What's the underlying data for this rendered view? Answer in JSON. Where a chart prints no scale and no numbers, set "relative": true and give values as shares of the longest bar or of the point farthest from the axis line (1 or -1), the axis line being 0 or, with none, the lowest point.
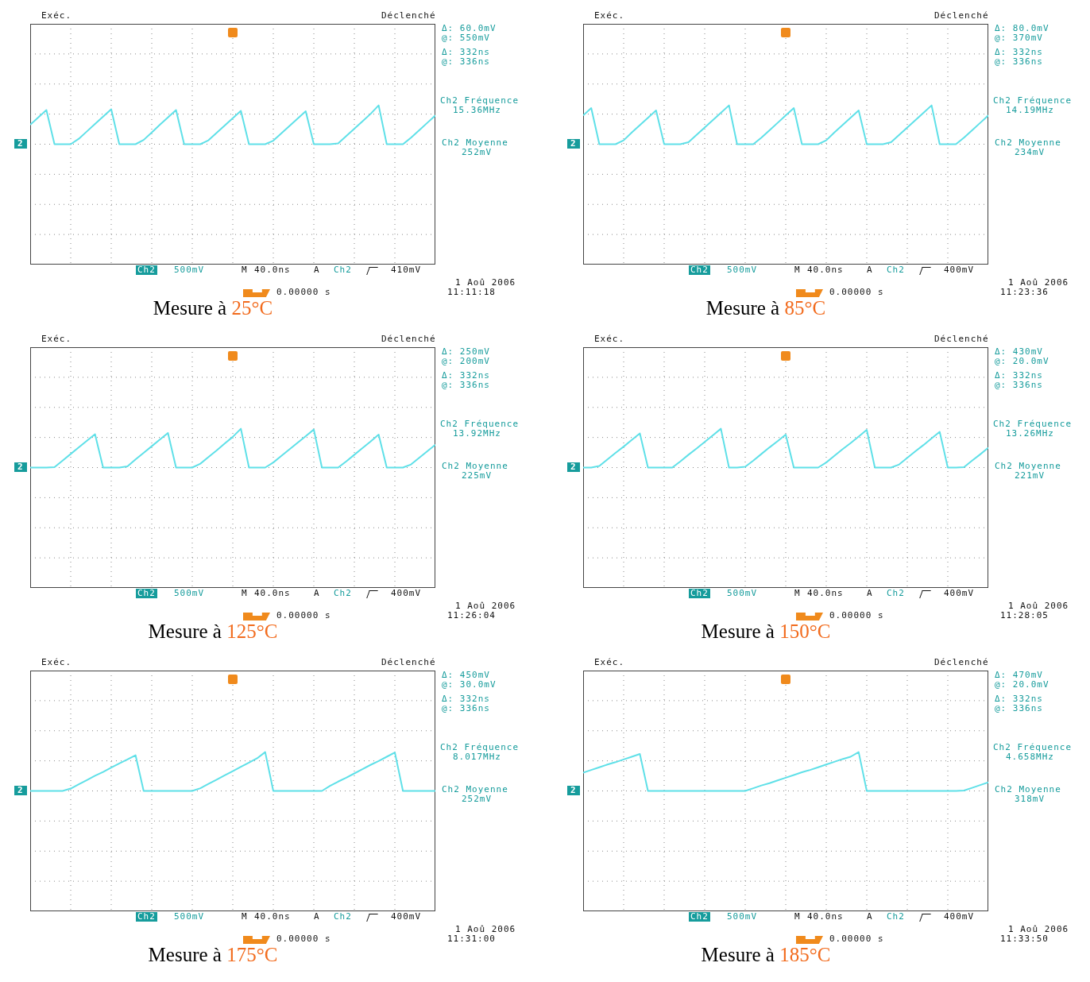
{
  "chart_data": [
    {
      "type": "line",
      "title": "Mesure à 25°C",
      "relative": true,
      "grid": true,
      "tick_labels": false,
      "categories": [
        null,
        null,
        null,
        null,
        null,
        null,
        null,
        null,
        null,
        null,
        null,
        null,
        null,
        null,
        null,
        null,
        null,
        null,
        null,
        null,
        null,
        null,
        null,
        null,
        null,
        null,
        null,
        null,
        null,
        null,
        null,
        null,
        null,
        null,
        null,
        null,
        null,
        null,
        null,
        null,
        null,
        null,
        null,
        null,
        null,
        null,
        null,
        null,
        null,
        null,
        null
      ],
      "series": [
        {
          "color": "#5fe0e8",
          "values": [
            0.5,
            0.69,
            0.88,
            0,
            0,
            0,
            0.14,
            0.33,
            0.52,
            0.71,
            0.9,
            0,
            0,
            0,
            0.11,
            0.3,
            0.5,
            0.69,
            0.88,
            0,
            0,
            0,
            0.1,
            0.29,
            0.48,
            0.67,
            0.86,
            0,
            0,
            0,
            0.09,
            0.28,
            0.47,
            0.66,
            0.85,
            0,
            0,
            0,
            0.02,
            0.21,
            0.4,
            0.59,
            0.78,
            1.0,
            0,
            0,
            0,
            0.17,
            0.36,
            0.55,
            0.74
          ]
        }
      ],
      "annotations": [
        "Exéc.",
        "Déclenché",
        "Δ: 60.0mV",
        "@: 550mV",
        "Δ: 332ns",
        "@: 336ns",
        "Ch2 Fréquence",
        "15.36MHz",
        "Ch2 Moyenne",
        "252mV",
        "Ch2",
        "500mV",
        "M",
        "40.0ns",
        "A",
        "Ch2",
        "410mV",
        "1 Aoû 2006",
        "11:11:18",
        "0.00000 s",
        "2"
      ]
    },
    {
      "type": "line",
      "title": "Mesure à 85°C",
      "relative": true,
      "grid": true,
      "tick_labels": false,
      "categories": [
        null,
        null,
        null,
        null,
        null,
        null,
        null,
        null,
        null,
        null,
        null,
        null,
        null,
        null,
        null,
        null,
        null,
        null,
        null,
        null,
        null,
        null,
        null,
        null,
        null,
        null,
        null,
        null,
        null,
        null,
        null,
        null,
        null,
        null,
        null,
        null,
        null,
        null,
        null,
        null,
        null,
        null,
        null,
        null,
        null,
        null,
        null,
        null,
        null,
        null,
        null
      ],
      "series": [
        {
          "color": "#5fe0e8",
          "values": [
            0.74,
            0.93,
            0,
            0,
            0,
            0.1,
            0.3,
            0.49,
            0.68,
            0.87,
            0,
            0,
            0,
            0.05,
            0.24,
            0.43,
            0.62,
            0.81,
            1.0,
            0,
            0,
            0,
            0.17,
            0.36,
            0.55,
            0.74,
            0.93,
            0,
            0,
            0,
            0.1,
            0.3,
            0.49,
            0.68,
            0.87,
            0,
            0,
            0,
            0.05,
            0.24,
            0.43,
            0.62,
            0.81,
            1.0,
            0,
            0,
            0,
            0.17,
            0.36,
            0.55,
            0.74
          ]
        }
      ],
      "annotations": [
        "Exéc.",
        "Déclenché",
        "Δ: 80.0mV",
        "@: 370mV",
        "Δ: 332ns",
        "@: 336ns",
        "Ch2 Fréquence",
        "14.19MHz",
        "Ch2 Moyenne",
        "234mV",
        "Ch2",
        "500mV",
        "M",
        "40.0ns",
        "A",
        "Ch2",
        "400mV",
        "1 Aoû 2006",
        "11:23:36",
        "0.00000 s",
        "2"
      ]
    },
    {
      "type": "line",
      "title": "Mesure à 125°C",
      "relative": true,
      "grid": true,
      "tick_labels": false,
      "categories": [
        null,
        null,
        null,
        null,
        null,
        null,
        null,
        null,
        null,
        null,
        null,
        null,
        null,
        null,
        null,
        null,
        null,
        null,
        null,
        null,
        null,
        null,
        null,
        null,
        null,
        null,
        null,
        null,
        null,
        null,
        null,
        null,
        null,
        null,
        null,
        null,
        null,
        null,
        null,
        null,
        null,
        null,
        null,
        null,
        null,
        null,
        null,
        null,
        null,
        null,
        null
      ],
      "series": [
        {
          "color": "#5fe0e8",
          "values": [
            0,
            0,
            0,
            0.01,
            0.18,
            0.35,
            0.52,
            0.69,
            0.86,
            0,
            0,
            0,
            0.03,
            0.21,
            0.38,
            0.55,
            0.72,
            0.89,
            0,
            0,
            0,
            0.1,
            0.27,
            0.44,
            0.62,
            0.79,
            1.0,
            0,
            0,
            0,
            0.13,
            0.3,
            0.47,
            0.64,
            0.81,
            0.98,
            0,
            0,
            0,
            0.16,
            0.33,
            0.5,
            0.67,
            0.85,
            0,
            0,
            0,
            0.08,
            0.25,
            0.42,
            0.59
          ]
        }
      ],
      "annotations": [
        "Exéc.",
        "Déclenché",
        "Δ: 250mV",
        "@: 200mV",
        "Δ: 332ns",
        "@: 336ns",
        "Ch2 Fréquence",
        "13.92MHz",
        "Ch2 Moyenne",
        "225mV",
        "Ch2",
        "500mV",
        "M",
        "40.0ns",
        "A",
        "Ch2",
        "400mV",
        "1 Aoû 2006",
        "11:26:04",
        "0.00000 s",
        "2"
      ]
    },
    {
      "type": "line",
      "title": "Mesure à 150°C",
      "relative": true,
      "grid": true,
      "tick_labels": false,
      "categories": [
        null,
        null,
        null,
        null,
        null,
        null,
        null,
        null,
        null,
        null,
        null,
        null,
        null,
        null,
        null,
        null,
        null,
        null,
        null,
        null,
        null,
        null,
        null,
        null,
        null,
        null,
        null,
        null,
        null,
        null,
        null,
        null,
        null,
        null,
        null,
        null,
        null,
        null,
        null,
        null,
        null,
        null,
        null,
        null,
        null,
        null,
        null,
        null,
        null,
        null,
        null
      ],
      "series": [
        {
          "color": "#5fe0e8",
          "values": [
            0,
            0,
            0.04,
            0.21,
            0.38,
            0.54,
            0.71,
            0.88,
            0,
            0,
            0,
            0,
            0.16,
            0.33,
            0.49,
            0.66,
            0.83,
            1.0,
            0,
            0,
            0.02,
            0.18,
            0.35,
            0.52,
            0.68,
            0.85,
            0,
            0,
            0,
            0,
            0.13,
            0.3,
            0.47,
            0.63,
            0.8,
            0.97,
            0,
            0,
            0,
            0.08,
            0.25,
            0.42,
            0.58,
            0.75,
            0.92,
            0,
            0,
            0.01,
            0.18,
            0.34,
            0.51
          ]
        }
      ],
      "annotations": [
        "Exéc.",
        "Déclenché",
        "Δ: 430mV",
        "@: 20.0mV",
        "Δ: 332ns",
        "@: 336ns",
        "Ch2 Fréquence",
        "13.26MHz",
        "Ch2 Moyenne",
        "221mV",
        "Ch2",
        "500mV",
        "M",
        "40.0ns",
        "A",
        "Ch2",
        "400mV",
        "1 Aoû 2006",
        "11:28:05",
        "0.00000 s",
        "2"
      ]
    },
    {
      "type": "line",
      "title": "Mesure à 175°C",
      "relative": true,
      "grid": true,
      "tick_labels": false,
      "categories": [
        null,
        null,
        null,
        null,
        null,
        null,
        null,
        null,
        null,
        null,
        null,
        null,
        null,
        null,
        null,
        null,
        null,
        null,
        null,
        null,
        null,
        null,
        null,
        null,
        null,
        null,
        null,
        null,
        null,
        null,
        null,
        null,
        null,
        null,
        null,
        null,
        null,
        null,
        null,
        null,
        null,
        null,
        null,
        null,
        null,
        null,
        null,
        null,
        null,
        null,
        null
      ],
      "series": [
        {
          "color": "#5fe0e8",
          "values": [
            0,
            0,
            0,
            0,
            0,
            0.06,
            0.17,
            0.28,
            0.39,
            0.49,
            0.6,
            0.71,
            0.81,
            0.92,
            0,
            0,
            0,
            0,
            0,
            0,
            0,
            0.07,
            0.18,
            0.29,
            0.4,
            0.51,
            0.62,
            0.73,
            0.84,
            1.0,
            0,
            0,
            0,
            0,
            0,
            0,
            0,
            0.13,
            0.24,
            0.34,
            0.45,
            0.56,
            0.67,
            0.77,
            0.88,
            0.99,
            0,
            0,
            0,
            0,
            0
          ]
        }
      ],
      "annotations": [
        "Exéc.",
        "Déclenché",
        "Δ: 450mV",
        "@: 30.0mV",
        "Δ: 332ns",
        "@: 336ns",
        "Ch2 Fréquence",
        "8.017MHz",
        "Ch2 Moyenne",
        "252mV",
        "Ch2",
        "500mV",
        "M",
        "40.0ns",
        "A",
        "Ch2",
        "400mV",
        "1 Aoû 2006",
        "11:31:00",
        "0.00000 s",
        "2"
      ]
    },
    {
      "type": "line",
      "title": "Mesure à 185°C",
      "relative": true,
      "grid": true,
      "tick_labels": false,
      "categories": [
        null,
        null,
        null,
        null,
        null,
        null,
        null,
        null,
        null,
        null,
        null,
        null,
        null,
        null,
        null,
        null,
        null,
        null,
        null,
        null,
        null,
        null,
        null,
        null,
        null,
        null,
        null,
        null,
        null,
        null,
        null,
        null,
        null,
        null,
        null,
        null,
        null,
        null,
        null,
        null,
        null,
        null,
        null,
        null,
        null,
        null,
        null,
        null,
        null,
        null,
        null
      ],
      "series": [
        {
          "color": "#5fe0e8",
          "values": [
            0.47,
            0.54,
            0.61,
            0.68,
            0.74,
            0.81,
            0.88,
            0.95,
            0,
            0,
            0,
            0,
            0,
            0,
            0,
            0,
            0,
            0,
            0,
            0,
            0,
            0.07,
            0.14,
            0.2,
            0.27,
            0.34,
            0.41,
            0.48,
            0.54,
            0.61,
            0.68,
            0.75,
            0.82,
            0.88,
            1.0,
            0,
            0,
            0,
            0,
            0,
            0,
            0,
            0,
            0,
            0,
            0,
            0,
            0.01,
            0.08,
            0.15,
            0.22
          ]
        }
      ],
      "annotations": [
        "Exéc.",
        "Déclenché",
        "Δ: 470mV",
        "@: 20.0mV",
        "Δ: 332ns",
        "@: 336ns",
        "Ch2 Fréquence",
        "4.658MHz",
        "Ch2 Moyenne",
        "318mV",
        "Ch2",
        "500mV",
        "M",
        "40.0ns",
        "A",
        "Ch2",
        "400mV",
        "1 Aoû 2006",
        "11:33:50",
        "0.00000 s",
        "2"
      ]
    }
  ]
}
